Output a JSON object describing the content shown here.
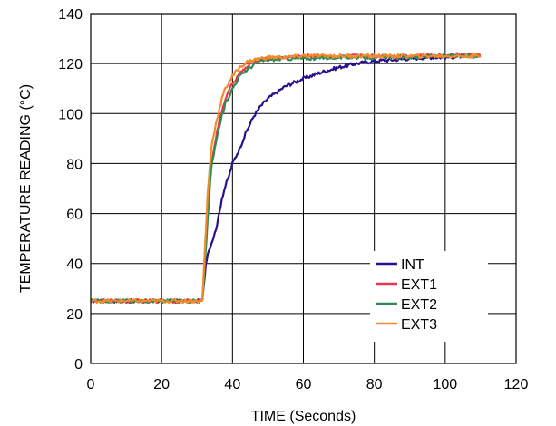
{
  "chart_data": {
    "type": "line",
    "title": "",
    "xlabel": "TIME (Seconds)",
    "ylabel": "TEMPERATURE READING (°C)",
    "xlim": [
      0,
      120
    ],
    "ylim": [
      0,
      140
    ],
    "xticks": [
      0,
      20,
      40,
      60,
      80,
      100,
      120
    ],
    "yticks": [
      0,
      20,
      40,
      60,
      80,
      100,
      120,
      140
    ],
    "grid": true,
    "legend_position": "center-right",
    "series": [
      {
        "name": "INT",
        "color": "#2b0f8c",
        "x": [
          0,
          10,
          20,
          30,
          31.5,
          32.5,
          33,
          34,
          35,
          36,
          37,
          38,
          39,
          40,
          42,
          44,
          46,
          48,
          50,
          55,
          60,
          65,
          70,
          75,
          80,
          85,
          90,
          95,
          100,
          105,
          110
        ],
        "y": [
          25,
          25,
          25,
          25,
          25,
          40,
          44,
          48,
          52,
          58,
          66,
          71,
          75,
          80,
          86,
          93,
          99,
          103,
          106,
          111,
          114,
          116.5,
          118.5,
          120,
          121,
          121.5,
          122,
          122.5,
          122.5,
          123,
          123
        ]
      },
      {
        "name": "EXT1",
        "color": "#e8384f",
        "x": [
          0,
          10,
          20,
          30,
          31.5,
          32,
          33,
          34,
          35,
          36,
          37,
          38,
          40,
          42,
          44,
          46,
          48,
          50,
          55,
          60,
          70,
          80,
          90,
          100,
          110
        ],
        "y": [
          25,
          25,
          25,
          25,
          25,
          36,
          62,
          80,
          88,
          95,
          101,
          106,
          112,
          116,
          118.5,
          120.5,
          121.5,
          122,
          122.5,
          123,
          123,
          123,
          123,
          123.5,
          123.5
        ]
      },
      {
        "name": "EXT2",
        "color": "#2e8b57",
        "x": [
          0,
          10,
          20,
          30,
          31.5,
          32,
          33,
          34,
          35,
          36,
          37,
          38,
          40,
          42,
          44,
          46,
          48,
          50,
          55,
          60,
          70,
          80,
          90,
          100,
          110
        ],
        "y": [
          25,
          25,
          25,
          25,
          25,
          34,
          58,
          78,
          86,
          93,
          99,
          104,
          110,
          115,
          117.5,
          119.5,
          121,
          121.5,
          122,
          122,
          122.5,
          122.5,
          122.5,
          123,
          123
        ]
      },
      {
        "name": "EXT3",
        "color": "#f58a2c",
        "x": [
          0,
          10,
          20,
          30,
          31.5,
          32,
          33,
          34,
          35,
          36,
          37,
          38,
          40,
          42,
          44,
          46,
          48,
          50,
          55,
          60,
          70,
          80,
          90,
          100,
          110
        ],
        "y": [
          25,
          25,
          25,
          25,
          25,
          40,
          68,
          86,
          94,
          100,
          106,
          110,
          115,
          118.5,
          120.5,
          121.5,
          122,
          122.5,
          122.5,
          123,
          123,
          123,
          123,
          123,
          123
        ]
      }
    ]
  }
}
